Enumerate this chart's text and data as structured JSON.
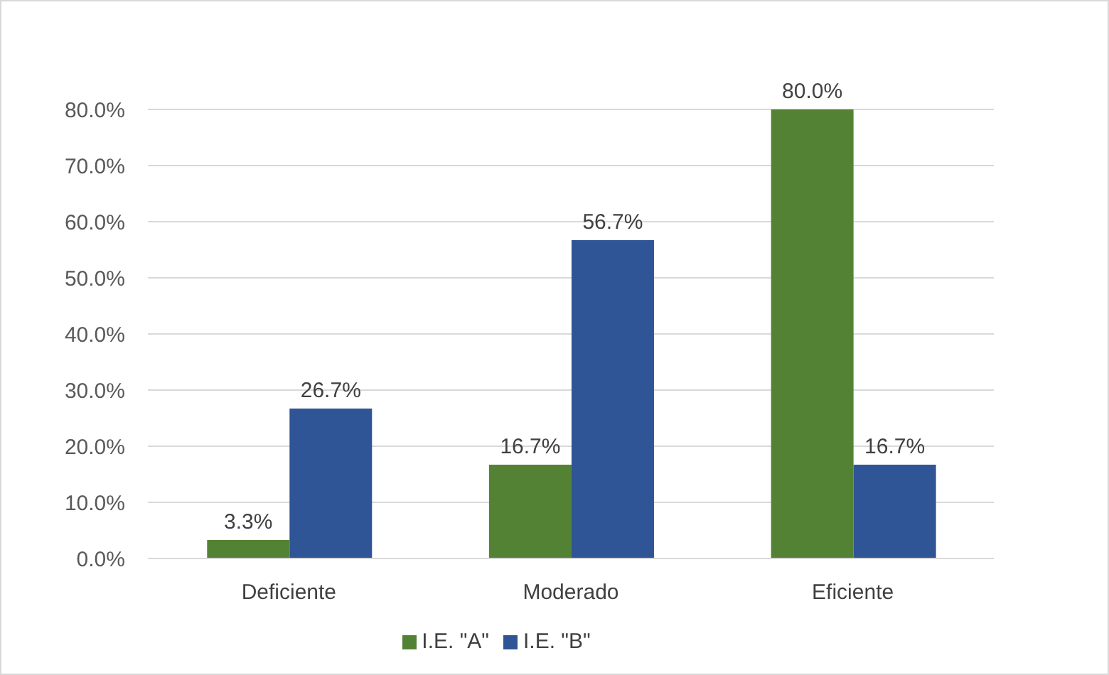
{
  "chart_data": {
    "type": "bar",
    "categories": [
      "Deficiente",
      "Moderado",
      "Eficiente"
    ],
    "series": [
      {
        "name": "I.E. \"A\"",
        "color": "#548235",
        "values": [
          3.3,
          16.7,
          80.0
        ],
        "value_labels": [
          "3.3%",
          "16.7%",
          "80.0%"
        ]
      },
      {
        "name": "I.E. \"B\"",
        "color": "#2f5597",
        "values": [
          26.7,
          56.7,
          16.7
        ],
        "value_labels": [
          "26.7%",
          "56.7%",
          "16.7%"
        ]
      }
    ],
    "ylim": [
      0,
      80
    ],
    "yticks": [
      {
        "value": 0,
        "label": "0.0%"
      },
      {
        "value": 10,
        "label": "10.0%"
      },
      {
        "value": 20,
        "label": "20.0%"
      },
      {
        "value": 30,
        "label": "30.0%"
      },
      {
        "value": 40,
        "label": "40.0%"
      },
      {
        "value": 50,
        "label": "50.0%"
      },
      {
        "value": 60,
        "label": "60.0%"
      },
      {
        "value": 70,
        "label": "70.0%"
      },
      {
        "value": 80,
        "label": "80.0%"
      }
    ],
    "grid": "y",
    "legend": "bottom"
  }
}
